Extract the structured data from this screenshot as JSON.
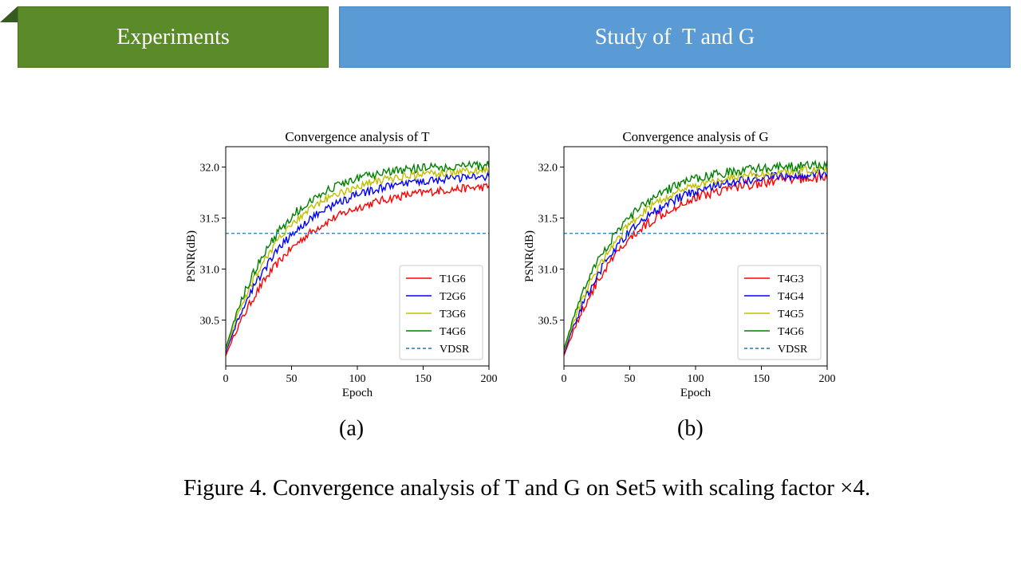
{
  "header": {
    "section_label": "Experiments",
    "slide_title": "Study of  T and G"
  },
  "figure": {
    "label_a": "(a)",
    "label_b": "(b)",
    "caption": "Figure 4. Convergence analysis of T and G on Set5 with scaling factor ×4."
  },
  "colors": {
    "section_tab": "#5b8a28",
    "title_tab": "#5b9bd5"
  },
  "chart_data": [
    {
      "type": "line",
      "title": "Convergence analysis of T",
      "xlabel": "Epoch",
      "ylabel": "PSNR(dB)",
      "xlim": [
        0,
        200
      ],
      "ylim": [
        30.05,
        32.2
      ],
      "xticks": [
        0,
        50,
        100,
        150,
        200
      ],
      "yticks": [
        30.5,
        31.0,
        31.5,
        32.0
      ],
      "legend_position": "lower-right",
      "reference": {
        "name": "VDSR",
        "value": 31.35,
        "color": "#1f77b4",
        "style": "dashed"
      },
      "series": [
        {
          "name": "T1G6",
          "color": "#ff0000",
          "start": 30.15,
          "final": 31.84,
          "rate": 0.0195,
          "noise": 0.04
        },
        {
          "name": "T2G6",
          "color": "#0000ff",
          "start": 30.18,
          "final": 31.93,
          "rate": 0.0215,
          "noise": 0.04
        },
        {
          "name": "T3G6",
          "color": "#bfbf00",
          "start": 30.2,
          "final": 31.98,
          "rate": 0.0235,
          "noise": 0.04
        },
        {
          "name": "T4G6",
          "color": "#008000",
          "start": 30.22,
          "final": 32.03,
          "rate": 0.025,
          "noise": 0.045
        }
      ]
    },
    {
      "type": "line",
      "title": "Convergence analysis of G",
      "xlabel": "Epoch",
      "ylabel": "PSNR(dB)",
      "xlim": [
        0,
        200
      ],
      "ylim": [
        30.05,
        32.2
      ],
      "xticks": [
        0,
        50,
        100,
        150,
        200
      ],
      "yticks": [
        30.5,
        31.0,
        31.5,
        32.0
      ],
      "legend_position": "lower-right",
      "reference": {
        "name": "VDSR",
        "value": 31.35,
        "color": "#1f77b4",
        "style": "dashed"
      },
      "series": [
        {
          "name": "T4G3",
          "color": "#ff0000",
          "start": 30.15,
          "final": 31.93,
          "rate": 0.0205,
          "noise": 0.05
        },
        {
          "name": "T4G4",
          "color": "#0000ff",
          "start": 30.17,
          "final": 31.96,
          "rate": 0.022,
          "noise": 0.045
        },
        {
          "name": "T4G5",
          "color": "#bfbf00",
          "start": 30.19,
          "final": 31.99,
          "rate": 0.0235,
          "noise": 0.04
        },
        {
          "name": "T4G6",
          "color": "#008000",
          "start": 30.21,
          "final": 32.03,
          "rate": 0.025,
          "noise": 0.045
        }
      ]
    }
  ]
}
